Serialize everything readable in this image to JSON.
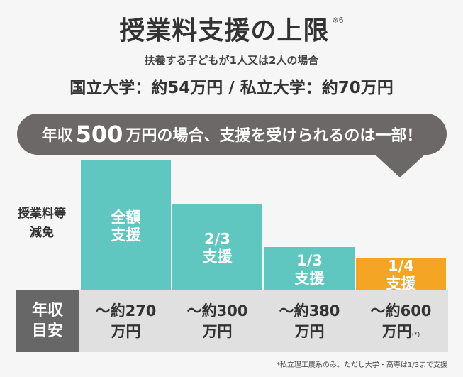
{
  "header": {
    "title": "授業料支援の上限",
    "title_note": "※6",
    "subtitle": "扶養する子どもが1人又は2人の場合",
    "headline": "国立大学：約54万円 / 私立大学：約70万円"
  },
  "banner": {
    "prefix": "年収",
    "amount": "500",
    "suffix": "万円の場合、支援を受けられるのは一部！"
  },
  "side_label": {
    "line1": "授業料等",
    "line2": "減免"
  },
  "income_header": {
    "line1": "年収",
    "line2": "目安"
  },
  "colors": {
    "teal": "#5fc6c0",
    "orange": "#f5a524",
    "gray_dark": "#676767",
    "gray_light": "#e0e0e0"
  },
  "chart_data": {
    "type": "bar",
    "categories": [
      "〜約270万円",
      "〜約300万円",
      "〜約380万円",
      "〜約600万円(*)"
    ],
    "values": [
      1,
      0.6667,
      0.3333,
      0.25
    ],
    "bar_labels": [
      [
        "全額",
        "支援"
      ],
      [
        "2/3",
        "支援"
      ],
      [
        "1/3",
        "支援"
      ],
      [
        "1/4",
        "支援"
      ]
    ],
    "bar_colors": [
      "#5fc6c0",
      "#5fc6c0",
      "#5fc6c0",
      "#f5a524"
    ],
    "ylim": [
      0,
      1
    ]
  },
  "income": [
    {
      "line1": "〜約270",
      "line2": "万円",
      "note": ""
    },
    {
      "line1": "〜約300",
      "line2": "万円",
      "note": ""
    },
    {
      "line1": "〜約380",
      "line2": "万円",
      "note": ""
    },
    {
      "line1": "〜約600",
      "line2": "万円",
      "note": "(*)"
    }
  ],
  "footnote": "*私立理工農系のみ。ただし大学・高専は1/3まで支援"
}
